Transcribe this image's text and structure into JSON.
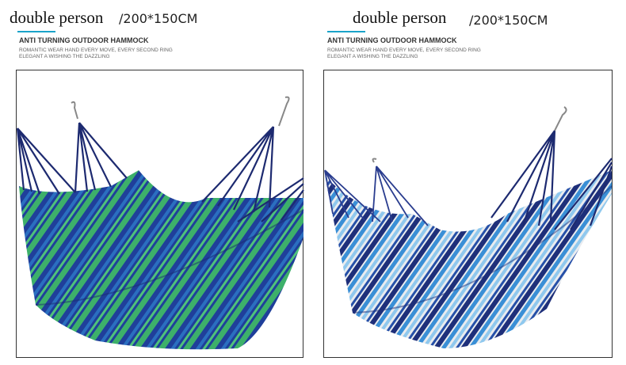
{
  "panels": [
    {
      "title": "double person",
      "size": "/200*150CM",
      "heading": "ANTI TURNING OUTDOOR HAMMOCK",
      "lines": [
        "ROMANTIC WEAR HAND EVERY MOVE, EVERY SECOND RING",
        "ELEGANT A WISHING THE DAZZLING"
      ]
    },
    {
      "title": "double person",
      "size": "/200*150CM",
      "heading": "ANTI TURNING OUTDOOR HAMMOCK",
      "lines": [
        "ROMANTIC WEAR HAND EVERY MOVE, EVERY SECOND RING",
        "ELEGANT A WISHING THE DAZZLING"
      ]
    }
  ]
}
